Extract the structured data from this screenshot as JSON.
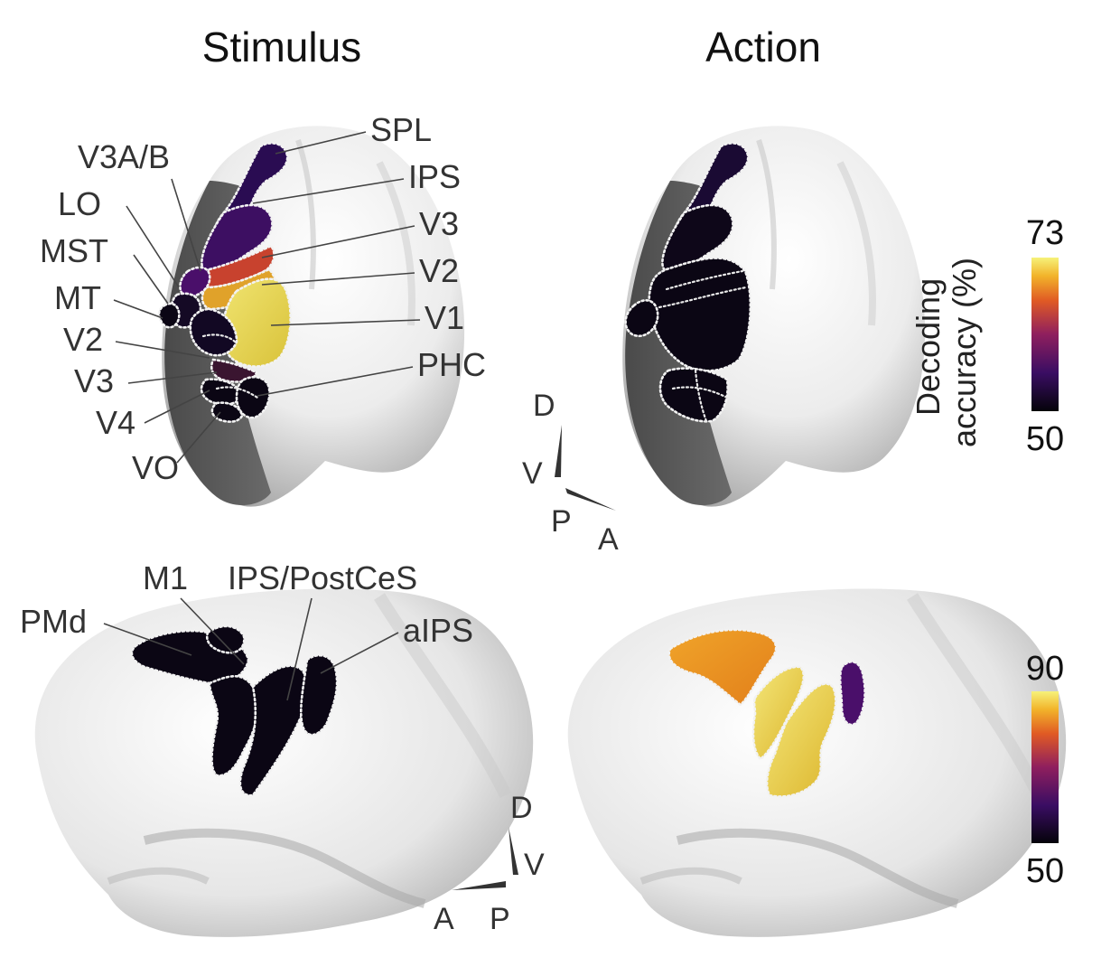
{
  "columns": {
    "left": "Stimulus",
    "right": "Action"
  },
  "top_row": {
    "labels_right": [
      "SPL",
      "IPS",
      "V3",
      "V2",
      "V1",
      "PHC"
    ],
    "labels_left": [
      "V3A/B",
      "LO",
      "MST",
      "MT",
      "V2",
      "V3",
      "V4",
      "VO"
    ]
  },
  "bottom_row": {
    "labels": [
      "PMd",
      "M1",
      "IPS/PostCeS",
      "aIPS"
    ]
  },
  "orientation_top": {
    "up": "D",
    "down": "V",
    "back": "P",
    "front": "A"
  },
  "orientation_bottom": {
    "up": "D",
    "down": "V",
    "front": "A",
    "back": "P"
  },
  "colorbar_top": {
    "title_line1": "Decoding",
    "title_line2": "accuracy (%)",
    "max": "73",
    "min": "50"
  },
  "colorbar_bottom": {
    "max": "90",
    "min": "50"
  },
  "colors": {
    "black": "#0b0614",
    "dark_purple": "#2a0c52",
    "purple": "#4a0f6a",
    "magenta": "#7a1a64",
    "red_orange": "#c8422e",
    "orange": "#e8961e",
    "yellow": "#e6d234",
    "pale_yellow": "#f4f29a"
  }
}
